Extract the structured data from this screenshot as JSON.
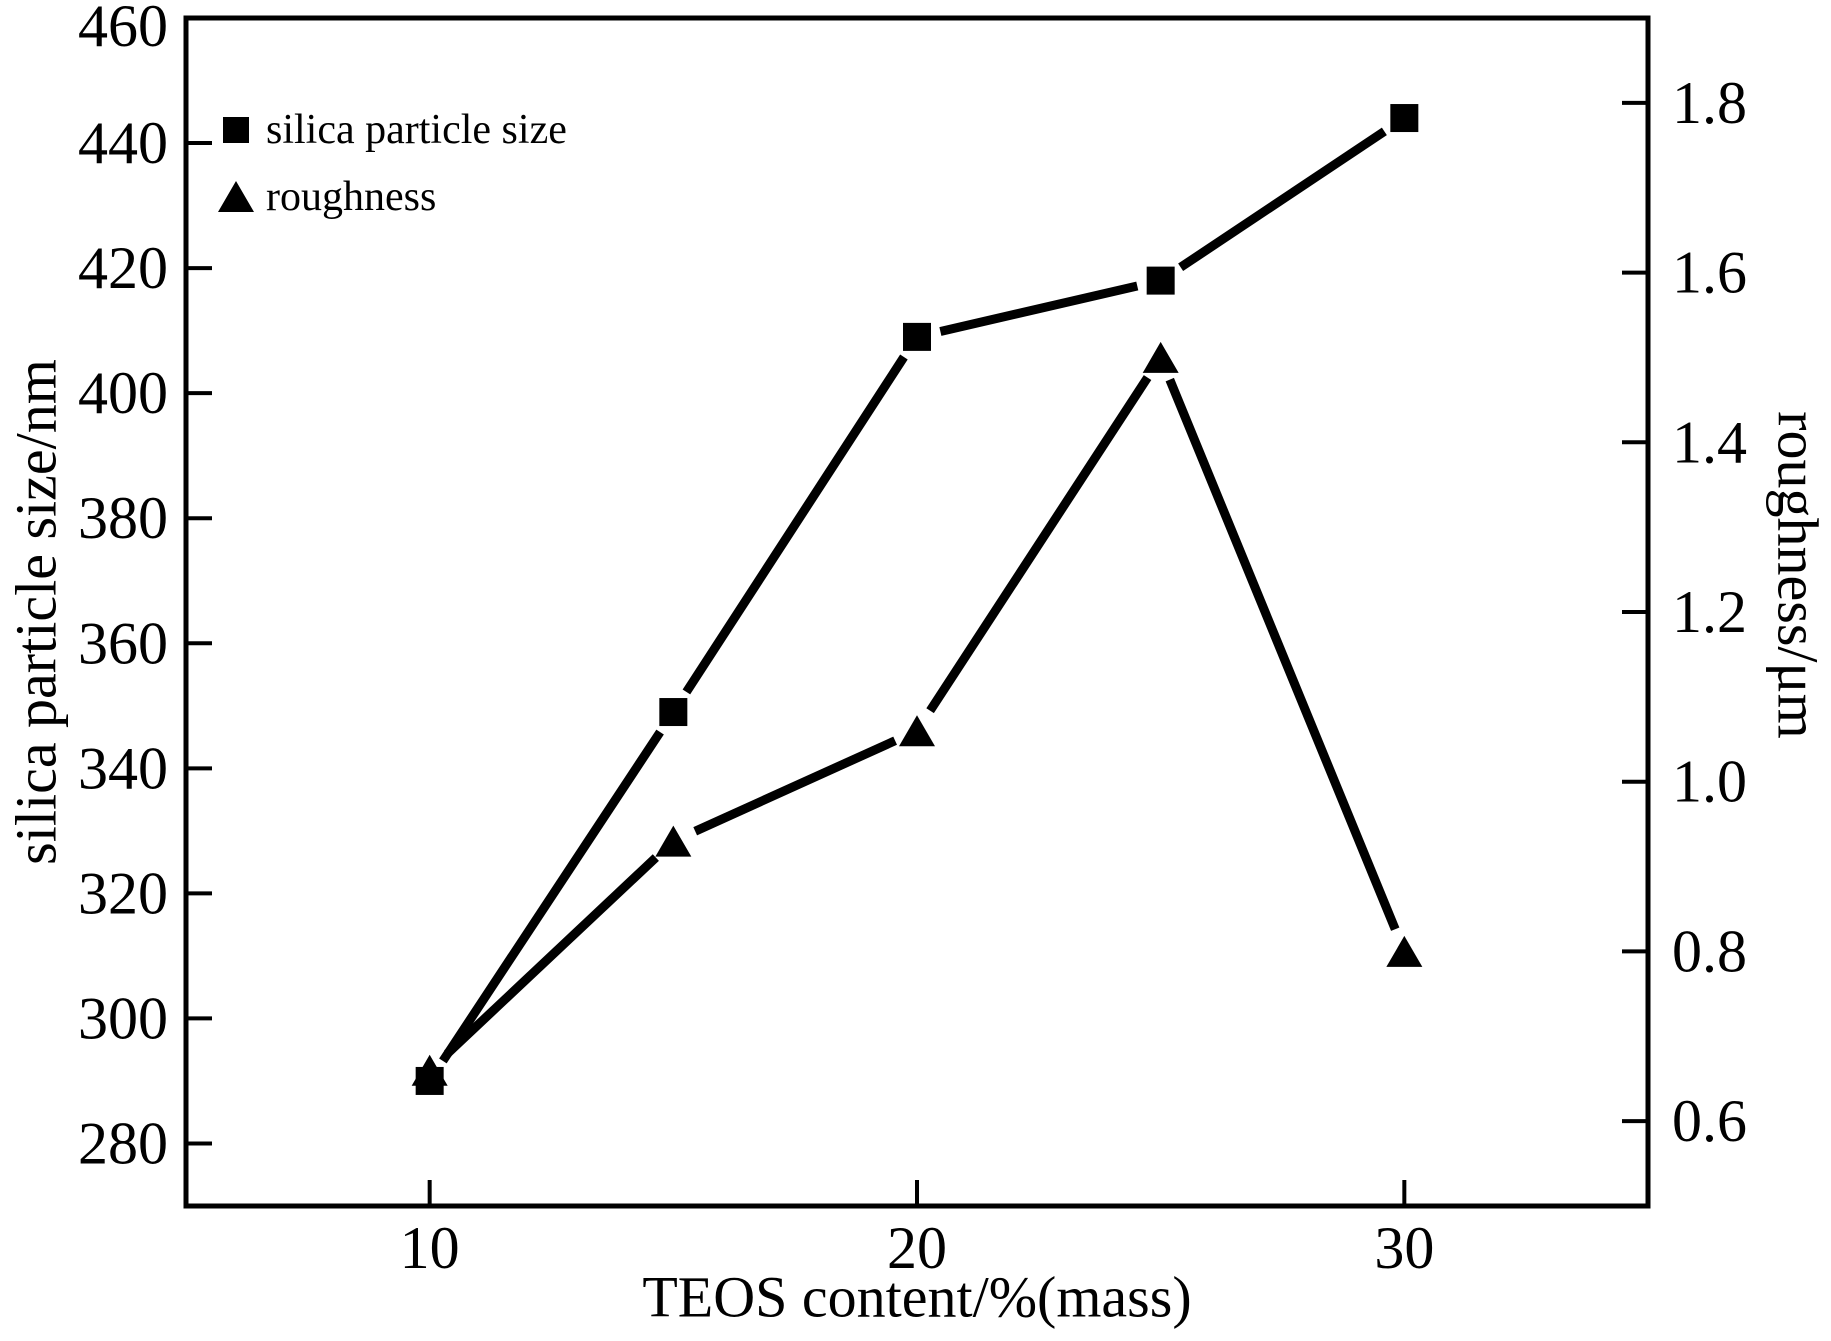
{
  "figure": {
    "background": "#ffffff",
    "ink_color": "#000000"
  },
  "legend": {
    "position": "upper-left",
    "items": [
      {
        "marker": "square-icon",
        "label": "silica particle size"
      },
      {
        "marker": "triangle-icon",
        "label": "roughness"
      }
    ]
  },
  "axes": {
    "x": {
      "label": "TEOS content/%(mass)",
      "tick_labels": [
        "10",
        "20",
        "30"
      ],
      "range": [
        5,
        35
      ]
    },
    "y_left": {
      "label": "silica particle size/nm",
      "tick_labels": [
        "460",
        "440",
        "420",
        "400",
        "380",
        "360",
        "340",
        "320",
        "300",
        "280"
      ],
      "range": [
        270,
        460
      ]
    },
    "y_right": {
      "label": "roughness/μm",
      "tick_labels": [
        "1.8",
        "1.6",
        "1.4",
        "1.2",
        "1.0",
        "0.8",
        "0.6"
      ],
      "range": [
        0.5,
        1.9
      ]
    }
  },
  "chart_data": {
    "type": "line",
    "title": "",
    "x": [
      10,
      15,
      20,
      25,
      30
    ],
    "series": [
      {
        "name": "silica particle size",
        "axis": "left",
        "marker": "square",
        "values": [
          290,
          349,
          409,
          418,
          444
        ]
      },
      {
        "name": "roughness",
        "axis": "right",
        "marker": "triangle",
        "values": [
          0.66,
          0.93,
          1.06,
          1.5,
          0.8
        ]
      }
    ],
    "xlabel": "TEOS content/%(mass)",
    "ylabel_left": "silica particle size/nm",
    "ylabel_right": "roughness/μm",
    "xlim": [
      5,
      35
    ],
    "ylim_left": [
      270,
      460
    ],
    "ylim_right": [
      0.5,
      1.9
    ],
    "x_ticks": [
      10,
      20,
      30
    ],
    "y_left_ticks": [
      460,
      440,
      420,
      400,
      380,
      360,
      340,
      320,
      300,
      280
    ],
    "y_right_ticks": [
      1.8,
      1.6,
      1.4,
      1.2,
      1.0,
      0.8,
      0.6
    ],
    "grid": false,
    "legend_position": "upper-left"
  }
}
